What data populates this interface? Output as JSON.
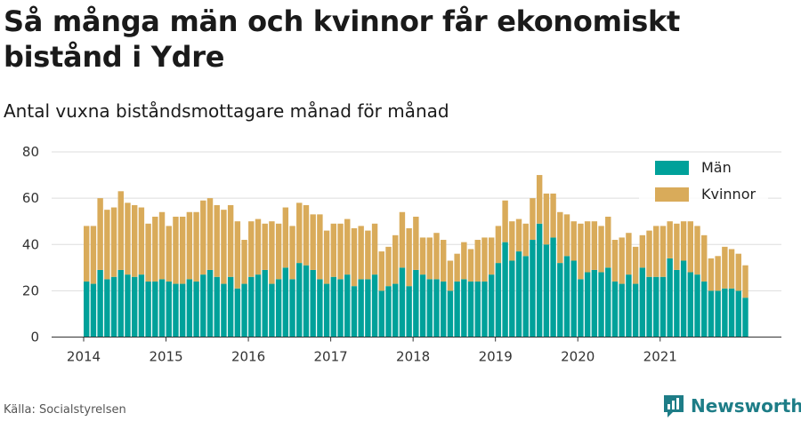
{
  "title": "Så många män och kvinnor får ekonomiskt bistånd i Ydre",
  "subtitle": "Antal vuxna biståndsmottagare månad för månad",
  "source": "Källa: Socialstyrelsen",
  "brand": "Newsworthy",
  "colors": {
    "men": "#00a19a",
    "women": "#d9ab5a",
    "brand": "#1e7d87"
  },
  "chart_data": {
    "type": "bar",
    "stacked": true,
    "start_month": "2014-01",
    "x_ticks": [
      "2014",
      "2015",
      "2016",
      "2017",
      "2018",
      "2019",
      "2020",
      "2021"
    ],
    "ylim": [
      0,
      80
    ],
    "y_ticks": [
      0,
      20,
      40,
      60,
      80
    ],
    "grid": true,
    "legend_position": "top-right",
    "series": [
      {
        "name": "Män",
        "values": [
          24,
          23,
          29,
          25,
          26,
          29,
          27,
          26,
          27,
          24,
          24,
          25,
          24,
          23,
          23,
          25,
          24,
          27,
          29,
          26,
          23,
          26,
          21,
          23,
          26,
          27,
          29,
          23,
          25,
          30,
          25,
          32,
          31,
          29,
          25,
          23,
          26,
          25,
          27,
          22,
          25,
          25,
          27,
          20,
          22,
          23,
          30,
          22,
          29,
          27,
          25,
          25,
          24,
          20,
          24,
          25,
          24,
          24,
          24,
          27,
          32,
          41,
          33,
          37,
          35,
          42,
          49,
          40,
          43,
          32,
          35,
          33,
          25,
          28,
          29,
          28,
          30,
          24,
          23,
          27,
          23,
          30,
          26,
          26,
          26,
          34,
          29,
          33,
          28,
          27,
          24,
          20,
          20,
          21,
          21,
          20,
          17
        ]
      },
      {
        "name": "Kvinnor",
        "values": [
          24,
          25,
          31,
          30,
          30,
          34,
          31,
          31,
          29,
          25,
          28,
          29,
          24,
          29,
          29,
          29,
          30,
          32,
          31,
          31,
          32,
          31,
          29,
          19,
          24,
          24,
          20,
          27,
          24,
          26,
          23,
          26,
          26,
          24,
          28,
          23,
          23,
          24,
          24,
          25,
          23,
          21,
          22,
          17,
          17,
          21,
          24,
          25,
          23,
          16,
          18,
          20,
          18,
          13,
          12,
          16,
          14,
          18,
          19,
          16,
          16,
          18,
          17,
          14,
          14,
          18,
          21,
          22,
          19,
          22,
          18,
          17,
          24,
          22,
          21,
          20,
          22,
          18,
          20,
          18,
          16,
          14,
          20,
          22,
          22,
          16,
          20,
          17,
          22,
          21,
          20,
          14,
          15,
          18,
          17,
          16,
          14
        ]
      }
    ]
  }
}
